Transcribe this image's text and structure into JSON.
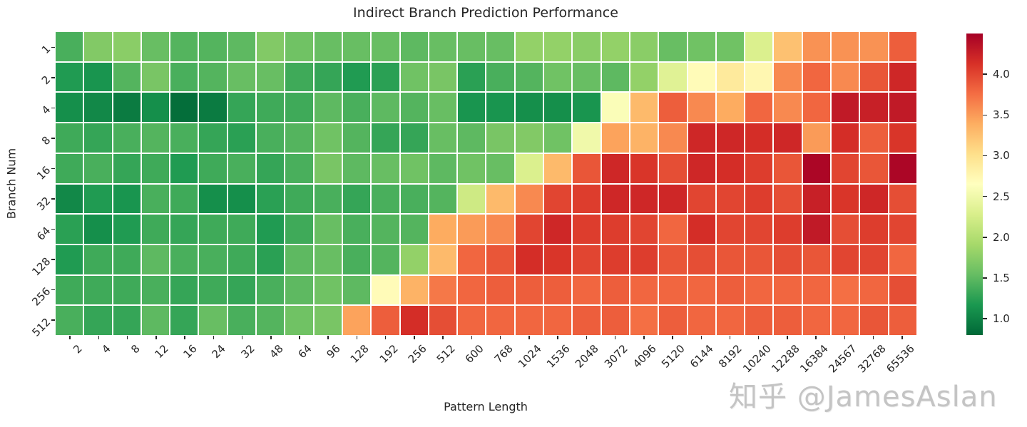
{
  "chart_data": {
    "type": "heatmap",
    "title": "Indirect Branch Prediction Performance",
    "xlabel": "Pattern Length",
    "ylabel": "Branch Num",
    "x_categories": [
      "2",
      "4",
      "8",
      "12",
      "16",
      "24",
      "32",
      "48",
      "64",
      "96",
      "128",
      "192",
      "256",
      "512",
      "600",
      "768",
      "1024",
      "1536",
      "2048",
      "3072",
      "4096",
      "5120",
      "6144",
      "8192",
      "10240",
      "12288",
      "16384",
      "24567",
      "32768",
      "65536"
    ],
    "y_categories": [
      "1",
      "2",
      "4",
      "8",
      "16",
      "32",
      "64",
      "128",
      "256",
      "512"
    ],
    "values": [
      [
        1.4,
        1.7,
        1.75,
        1.55,
        1.45,
        1.45,
        1.5,
        1.7,
        1.6,
        1.55,
        1.55,
        1.55,
        1.5,
        1.55,
        1.55,
        1.55,
        1.8,
        1.8,
        1.75,
        1.8,
        1.75,
        1.55,
        1.6,
        1.6,
        2.3,
        3.25,
        3.55,
        3.55,
        3.55,
        3.85
      ],
      [
        1.2,
        1.15,
        1.45,
        1.65,
        1.4,
        1.45,
        1.55,
        1.55,
        1.35,
        1.3,
        1.2,
        1.25,
        1.6,
        1.65,
        1.25,
        1.4,
        1.45,
        1.6,
        1.55,
        1.5,
        1.8,
        2.35,
        2.7,
        2.9,
        2.75,
        3.6,
        3.8,
        3.6,
        3.9,
        4.2
      ],
      [
        1.1,
        1.05,
        0.95,
        1.1,
        0.85,
        0.95,
        1.3,
        1.35,
        1.35,
        1.5,
        1.4,
        1.5,
        1.45,
        1.55,
        1.15,
        1.15,
        1.1,
        1.1,
        1.15,
        2.6,
        3.3,
        3.85,
        3.6,
        3.4,
        3.8,
        3.6,
        3.8,
        4.3,
        4.25,
        4.3
      ],
      [
        1.35,
        1.3,
        1.4,
        1.45,
        1.4,
        1.3,
        1.25,
        1.4,
        1.45,
        1.6,
        1.45,
        1.3,
        1.3,
        1.55,
        1.5,
        1.65,
        1.7,
        1.6,
        2.5,
        3.45,
        3.35,
        3.6,
        4.2,
        4.2,
        4.15,
        4.2,
        3.5,
        4.15,
        3.85,
        4.1
      ],
      [
        1.35,
        1.4,
        1.3,
        1.35,
        1.2,
        1.35,
        1.4,
        1.3,
        1.4,
        1.65,
        1.5,
        1.55,
        1.6,
        1.5,
        1.6,
        1.55,
        2.3,
        3.3,
        3.9,
        4.2,
        4.1,
        3.95,
        4.2,
        4.15,
        4.05,
        3.9,
        4.45,
        4.0,
        3.9,
        4.45
      ],
      [
        1.05,
        1.2,
        1.15,
        1.4,
        1.35,
        1.1,
        1.1,
        1.25,
        1.35,
        1.4,
        1.3,
        1.4,
        1.4,
        1.45,
        2.2,
        3.3,
        3.6,
        4.0,
        4.05,
        4.2,
        4.2,
        4.2,
        4.0,
        4.0,
        4.05,
        3.95,
        4.25,
        4.1,
        4.2,
        3.95
      ],
      [
        1.25,
        1.1,
        1.2,
        1.35,
        1.3,
        1.35,
        1.35,
        1.2,
        1.35,
        1.55,
        1.4,
        1.45,
        1.45,
        3.4,
        3.5,
        3.6,
        4.0,
        4.2,
        4.05,
        4.05,
        4.0,
        3.8,
        4.15,
        4.0,
        4.0,
        4.05,
        4.3,
        3.95,
        4.05,
        4.0
      ],
      [
        1.2,
        1.35,
        1.35,
        1.5,
        1.4,
        1.4,
        1.35,
        1.25,
        1.5,
        1.55,
        1.4,
        1.45,
        1.8,
        3.3,
        3.8,
        3.9,
        4.15,
        4.1,
        4.0,
        4.05,
        4.05,
        3.9,
        3.95,
        3.9,
        3.9,
        3.95,
        3.9,
        4.0,
        4.0,
        3.8
      ],
      [
        1.35,
        1.35,
        1.35,
        1.4,
        1.3,
        1.35,
        1.3,
        1.4,
        1.5,
        1.6,
        1.5,
        2.7,
        3.35,
        3.7,
        3.8,
        3.85,
        3.85,
        3.85,
        3.8,
        3.85,
        3.8,
        3.8,
        3.8,
        3.85,
        3.8,
        3.8,
        3.8,
        3.75,
        3.8,
        3.95
      ],
      [
        1.4,
        1.3,
        1.3,
        1.5,
        1.3,
        1.55,
        1.4,
        1.45,
        1.6,
        1.65,
        3.45,
        3.85,
        4.15,
        3.95,
        3.8,
        3.8,
        3.8,
        3.8,
        3.85,
        3.85,
        3.75,
        3.85,
        3.8,
        3.8,
        3.85,
        3.85,
        3.8,
        3.8,
        3.9,
        3.85
      ]
    ],
    "colormap": {
      "name": "RdYlGn_r",
      "vmin": 0.8,
      "vmax": 4.5,
      "anchors": [
        "#006837",
        "#1a9850",
        "#66bd63",
        "#a6d96a",
        "#d9ef8b",
        "#ffffbf",
        "#fee08b",
        "#fdae61",
        "#f46d43",
        "#d73027",
        "#a50026"
      ]
    },
    "colorbar_ticks": [
      {
        "label": "4.0",
        "value": 4.0
      },
      {
        "label": "3.5",
        "value": 3.5
      },
      {
        "label": "3.0",
        "value": 3.0
      },
      {
        "label": "2.5",
        "value": 2.5
      },
      {
        "label": "2.0",
        "value": 2.0
      },
      {
        "label": "1.5",
        "value": 1.5
      },
      {
        "label": "1.0",
        "value": 1.0
      }
    ],
    "legend_position": "right-colorbar",
    "grid_line_color": "#ffffff",
    "tick_color": "#262626"
  },
  "watermark": {
    "text": "知乎 @JamesAslan",
    "color": "#c4c4c4"
  }
}
